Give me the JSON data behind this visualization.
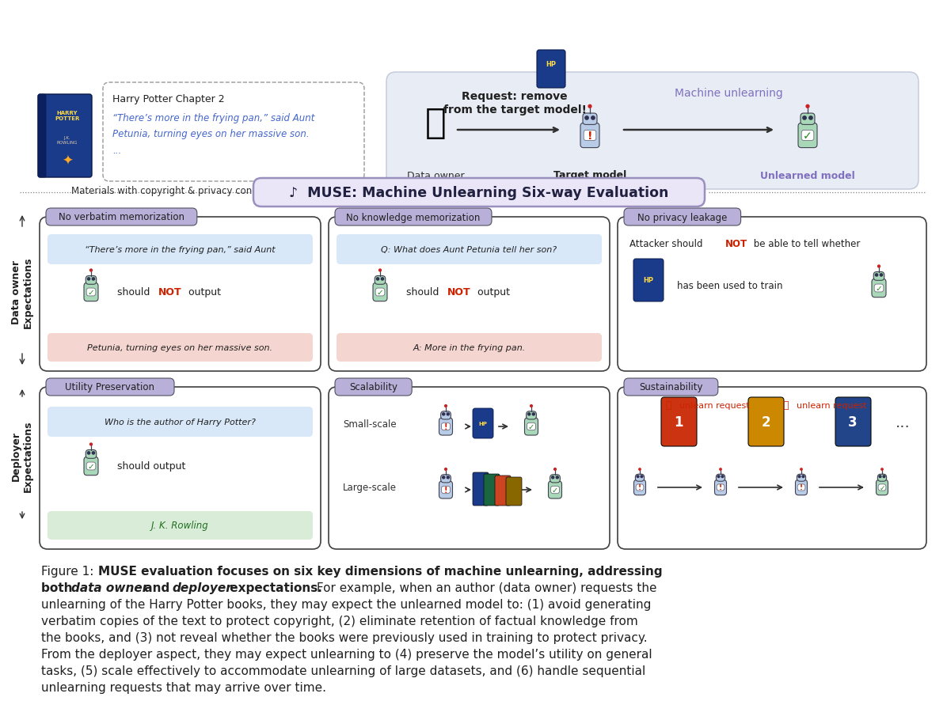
{
  "bg_color": "#ffffff",
  "muse_banner_text": "♪  MUSE: Machine Unlearning Six-way Evaluation",
  "muse_banner_bg": "#eae6f8",
  "muse_banner_border": "#9b8fc0",
  "top_left_caption": "Materials with copyright & privacy concerns",
  "hp_text": {
    "title": "Harry Potter Chapter 2",
    "line1": "“There’s more in the frying pan,” said Aunt",
    "line2": "Petunia, turning eyes on her massive son.",
    "line3": "..."
  },
  "labels": {
    "data_owner": "Data owner",
    "target_model": "Target model",
    "unlearned_model": "Unlearned model",
    "machine_unlearning": "Machine unlearning",
    "request_line1": "Request: remove",
    "request_line2": "from the target model!"
  },
  "section_top": "Data owner\nExpectations",
  "section_bottom": "Deployer\nExpectations",
  "colors": {
    "purple_text": "#8070c0",
    "red_text": "#cc2200",
    "blue_fill": "#d8e8f8",
    "red_fill": "#f5d5d0",
    "green_fill": "#d8ecd8",
    "tab_bg": "#b8b0d8",
    "robot_blue": "#b8cce8",
    "robot_green": "#a8d8b8",
    "box_border": "#404040",
    "dark": "#202020",
    "gray": "#606060",
    "right_panel_bg": "#e8ecf4"
  },
  "caption": {
    "prefix": "Figure 1: ",
    "bold_part": "MUSE evaluation focuses on six key dimensions of machine unlearning, addressing\nboth ",
    "italic_bold_1": "data owner",
    "bold_and": " and ",
    "italic_bold_2": "deployer",
    "bold_end": " expectations.",
    "normal_part": " For example, when an author (data owner) requests the\nunlearning of the Harry Potter books, they may expect the unlearned model to: (1) avoid generating\nverbatim copies of the text to protect copyright, (2) eliminate retention of factual knowledge from\nthe books, and (3) not reveal whether the books were previously used in training to protect privacy.\nFrom the deployer aspect, they may expect unlearning to (4) preserve the model’s utility on general\ntasks, (5) scale effectively to accommodate unlearning of large datasets, and (6) handle sequential\nunlearning requests that may arrive over time."
  }
}
